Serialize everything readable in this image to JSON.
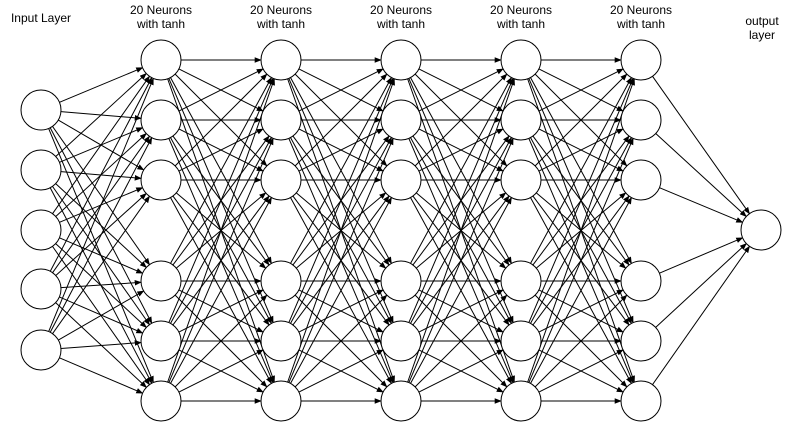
{
  "diagram": {
    "layers": [
      {
        "label": "Input Layer",
        "neurons": 5
      },
      {
        "label": "20 Neurons\nwith tanh",
        "neurons": 6
      },
      {
        "label": "20 Neurons\nwith tanh",
        "neurons": 6
      },
      {
        "label": "20 Neurons\nwith tanh",
        "neurons": 6
      },
      {
        "label": "20 Neurons\nwith tanh",
        "neurons": 6
      },
      {
        "label": "20 Neurons\nwith tanh",
        "neurons": 6
      },
      {
        "label": "output layer",
        "neurons": 1
      }
    ],
    "connectivity": "fully-connected",
    "colors": {
      "stroke": "#000000",
      "fill": "#ffffff"
    }
  }
}
